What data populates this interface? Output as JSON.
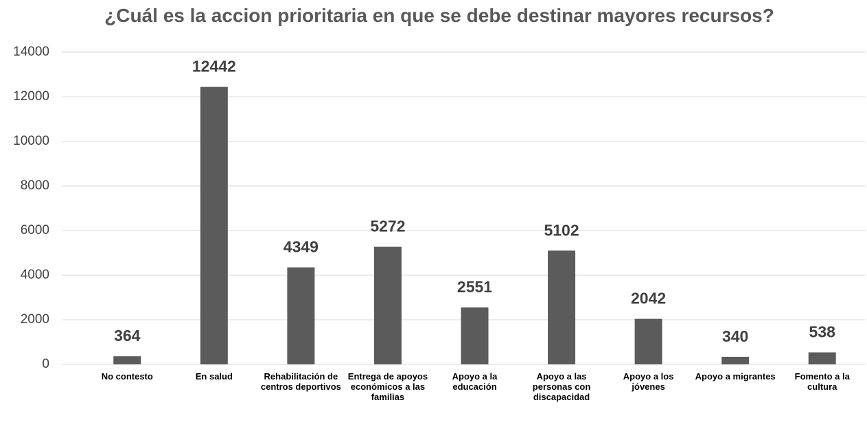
{
  "chart_data": {
    "type": "bar",
    "title": "¿Cuál es la accion prioritaria en que se debe destinar mayores recursos?",
    "categories": [
      "No contesto",
      "En salud",
      "Rehabilitación de centros deportivos",
      "Entrega de apoyos económicos a las familias",
      "Apoyo a la educación",
      "Apoyo a las personas con discapacidad",
      "Apoyo a los jóvenes",
      "Apoyo a migrantes",
      "Fomento a la cultura"
    ],
    "values": [
      364,
      12442,
      4349,
      5272,
      2551,
      5102,
      2042,
      340,
      538
    ],
    "color": "#5b5b5b",
    "ylim": [
      0,
      14000
    ],
    "yticks": [
      0,
      2000,
      4000,
      6000,
      8000,
      10000,
      12000,
      14000
    ],
    "grid": true
  }
}
